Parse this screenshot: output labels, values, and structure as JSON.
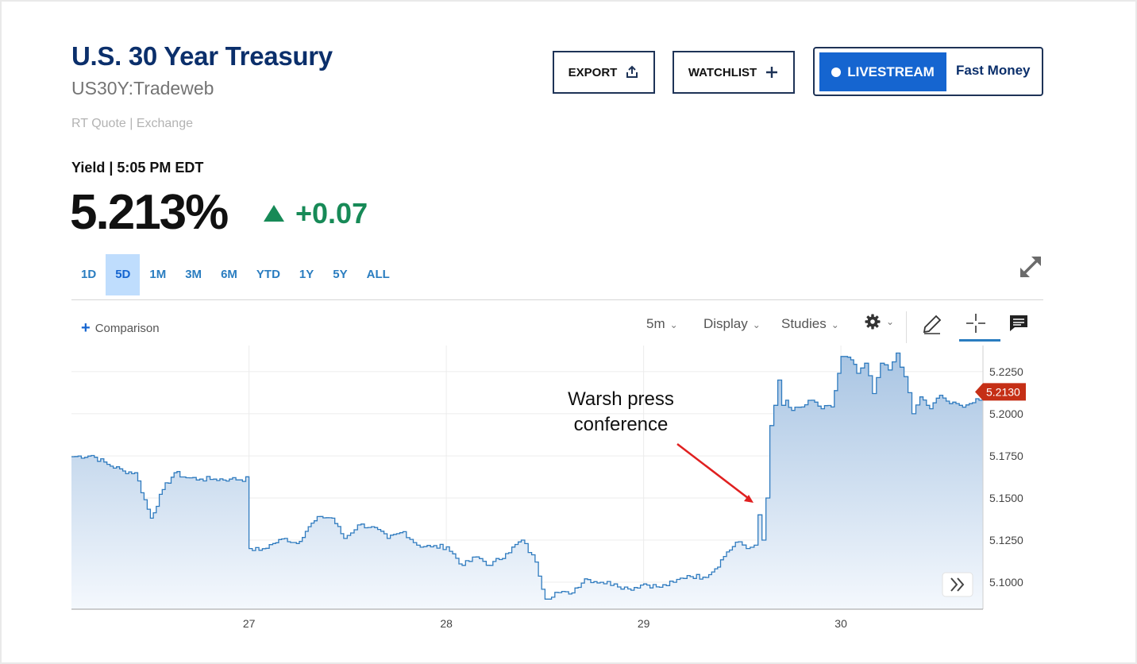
{
  "header": {
    "title": "U.S. 30 Year Treasury",
    "symbol": "US30Y:Tradeweb",
    "quote_source": "RT Quote | Exchange"
  },
  "actions": {
    "export_label": "EXPORT",
    "watchlist_label": "WATCHLIST",
    "livestream_label": "LIVESTREAM",
    "livestream_show": "Fast Money"
  },
  "quote": {
    "yield_label": "Yield | 5:05 PM EDT",
    "price": "5.213%",
    "change": "+0.07",
    "direction": "up",
    "up_color": "#178a57"
  },
  "range_tabs": [
    "1D",
    "5D",
    "1M",
    "3M",
    "6M",
    "YTD",
    "1Y",
    "5Y",
    "ALL"
  ],
  "active_range": "5D",
  "toolbar": {
    "comparison_label": "Comparison",
    "interval_label": "5m",
    "display_label": "Display",
    "studies_label": "Studies"
  },
  "icons": [
    "export-icon",
    "plus-icon",
    "expand-icon",
    "gear-icon",
    "pencil-icon",
    "crosshair-icon",
    "comment-icon",
    "scroll-forward-icon"
  ],
  "chart_data": {
    "type": "area",
    "x_tick_labels": [
      "27",
      "28",
      "29",
      "30"
    ],
    "y_tick_labels": [
      "5.2250",
      "5.2000",
      "5.1750",
      "5.1500",
      "5.1250",
      "5.1000"
    ],
    "ylim": [
      5.084,
      5.2405
    ],
    "grid": true,
    "last_value_label": "5.2130",
    "line_color": "#2f7bbf",
    "annotation": {
      "text_lines": [
        "Warsh press",
        "conference"
      ],
      "color": "#e02020"
    },
    "series": [
      {
        "x": [
          26.1,
          26.2,
          26.28,
          26.36,
          26.42,
          26.5,
          26.56,
          26.62,
          26.68,
          26.75,
          26.82,
          26.9,
          27.0,
          27.0,
          27.05,
          27.12,
          27.18,
          27.24,
          27.3,
          27.36,
          27.42,
          27.48,
          27.55,
          27.62,
          27.7,
          27.78,
          27.85,
          27.92,
          28.0,
          28.08,
          28.15,
          28.22,
          28.3,
          28.38,
          28.45,
          28.5,
          28.55,
          28.62,
          28.7,
          28.78,
          28.85,
          28.92,
          29.0,
          29.08,
          29.15,
          29.22,
          29.3,
          29.36,
          29.42,
          29.48,
          29.52,
          29.56,
          29.58,
          29.6,
          29.62,
          29.64,
          29.66,
          29.68,
          29.7,
          29.72,
          29.75,
          29.8,
          29.85,
          29.9,
          29.95,
          30.0,
          30.05,
          30.08,
          30.12,
          30.16,
          30.2,
          30.24,
          30.28,
          30.32,
          30.36,
          30.4,
          30.45,
          30.5,
          30.55,
          30.6,
          30.65,
          30.7,
          30.72
        ],
        "y": [
          5.1745,
          5.1752,
          5.17,
          5.166,
          5.165,
          5.138,
          5.155,
          5.165,
          5.162,
          5.1612,
          5.1612,
          5.1612,
          5.1612,
          5.12,
          5.119,
          5.123,
          5.126,
          5.123,
          5.133,
          5.139,
          5.138,
          5.126,
          5.134,
          5.133,
          5.126,
          5.13,
          5.122,
          5.121,
          5.121,
          5.11,
          5.115,
          5.11,
          5.117,
          5.125,
          5.112,
          5.09,
          5.094,
          5.093,
          5.102,
          5.1,
          5.099,
          5.096,
          5.099,
          5.097,
          5.1,
          5.104,
          5.103,
          5.108,
          5.118,
          5.124,
          5.12,
          5.122,
          5.14,
          5.125,
          5.15,
          5.193,
          5.205,
          5.22,
          5.205,
          5.208,
          5.202,
          5.204,
          5.208,
          5.203,
          5.204,
          5.234,
          5.232,
          5.224,
          5.23,
          5.212,
          5.23,
          5.226,
          5.236,
          5.222,
          5.2,
          5.21,
          5.203,
          5.211,
          5.206,
          5.205,
          5.206,
          5.208,
          5.213
        ]
      }
    ]
  }
}
